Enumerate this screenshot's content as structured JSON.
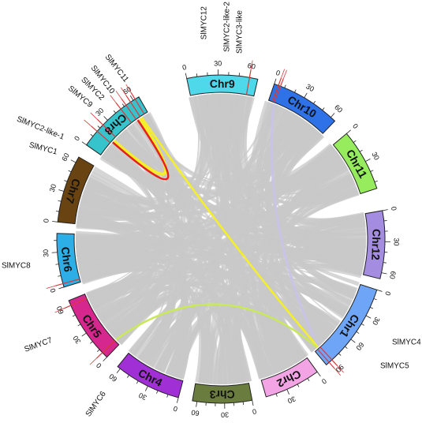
{
  "chromosomes": [
    {
      "id": "chr9",
      "label": "Chr9",
      "color": "#4fd7ea",
      "ticks": [
        "0",
        "30",
        "60"
      ]
    },
    {
      "id": "chr10",
      "label": "Chr10",
      "color": "#2f72e8",
      "ticks": [
        "0",
        "30",
        "60"
      ]
    },
    {
      "id": "chr11",
      "label": "Chr11",
      "color": "#96ec5c",
      "ticks": [
        "0",
        "30"
      ]
    },
    {
      "id": "chr12",
      "label": "Chr12",
      "color": "#a48de0",
      "ticks": [
        "0",
        "30",
        "60"
      ]
    },
    {
      "id": "chr1",
      "label": "Chr1",
      "color": "#6ea5f7",
      "ticks": [
        "0",
        "30",
        "60",
        "90"
      ]
    },
    {
      "id": "chr2",
      "label": "Chr2",
      "color": "#f2a4e4",
      "ticks": [
        "0",
        "30"
      ]
    },
    {
      "id": "chr3",
      "label": "Chr3",
      "color": "#6a7d3f",
      "ticks": [
        "0",
        "30",
        "60"
      ]
    },
    {
      "id": "chr4",
      "label": "Chr4",
      "color": "#a12fd6",
      "ticks": [
        "0",
        "30",
        "60"
      ]
    },
    {
      "id": "chr5",
      "label": "Chr5",
      "color": "#d6278f",
      "ticks": [
        "0",
        "30",
        "60"
      ]
    },
    {
      "id": "chr6",
      "label": "Chr6",
      "color": "#2eaee6",
      "ticks": [
        "0",
        "30"
      ]
    },
    {
      "id": "chr7",
      "label": "Chr7",
      "color": "#6a4312",
      "ticks": [
        "0",
        "30",
        "60"
      ]
    },
    {
      "id": "chr8",
      "label": "Chr8",
      "color": "#36c3cc",
      "ticks": [
        "0",
        "30",
        "60"
      ]
    }
  ],
  "genes": [
    {
      "label": "SlMYC12",
      "chr": "chr9"
    },
    {
      "label": "SlMYC2-like-2",
      "chr": "chr10"
    },
    {
      "label": "SlMYC3-like",
      "chr": "chr10"
    },
    {
      "label": "SlMYC11",
      "chr": "chr8"
    },
    {
      "label": "SlMYC10",
      "chr": "chr8"
    },
    {
      "label": "SlMYC2",
      "chr": "chr8"
    },
    {
      "label": "SlMYC9",
      "chr": "chr8"
    },
    {
      "label": "SlMYC2-like-1",
      "chr": "chr8"
    },
    {
      "label": "SlMYC1",
      "chr": "chr8"
    },
    {
      "label": "SlMYC8",
      "chr": "chr6"
    },
    {
      "label": "SlMYC7",
      "chr": "chr5"
    },
    {
      "label": "SlMYC6",
      "chr": "chr5"
    },
    {
      "label": "SlMYC4",
      "chr": "chr1"
    },
    {
      "label": "SlMYC5",
      "chr": "chr1"
    }
  ],
  "highlight_colors": {
    "background_links": "#c8c8c8",
    "faint_link": "#c9c2ee",
    "red_link": "#e8201a",
    "yellow_link": "#f5ef2a",
    "lime_link": "#c9e85a",
    "gene_tick": "#d83a3a"
  }
}
